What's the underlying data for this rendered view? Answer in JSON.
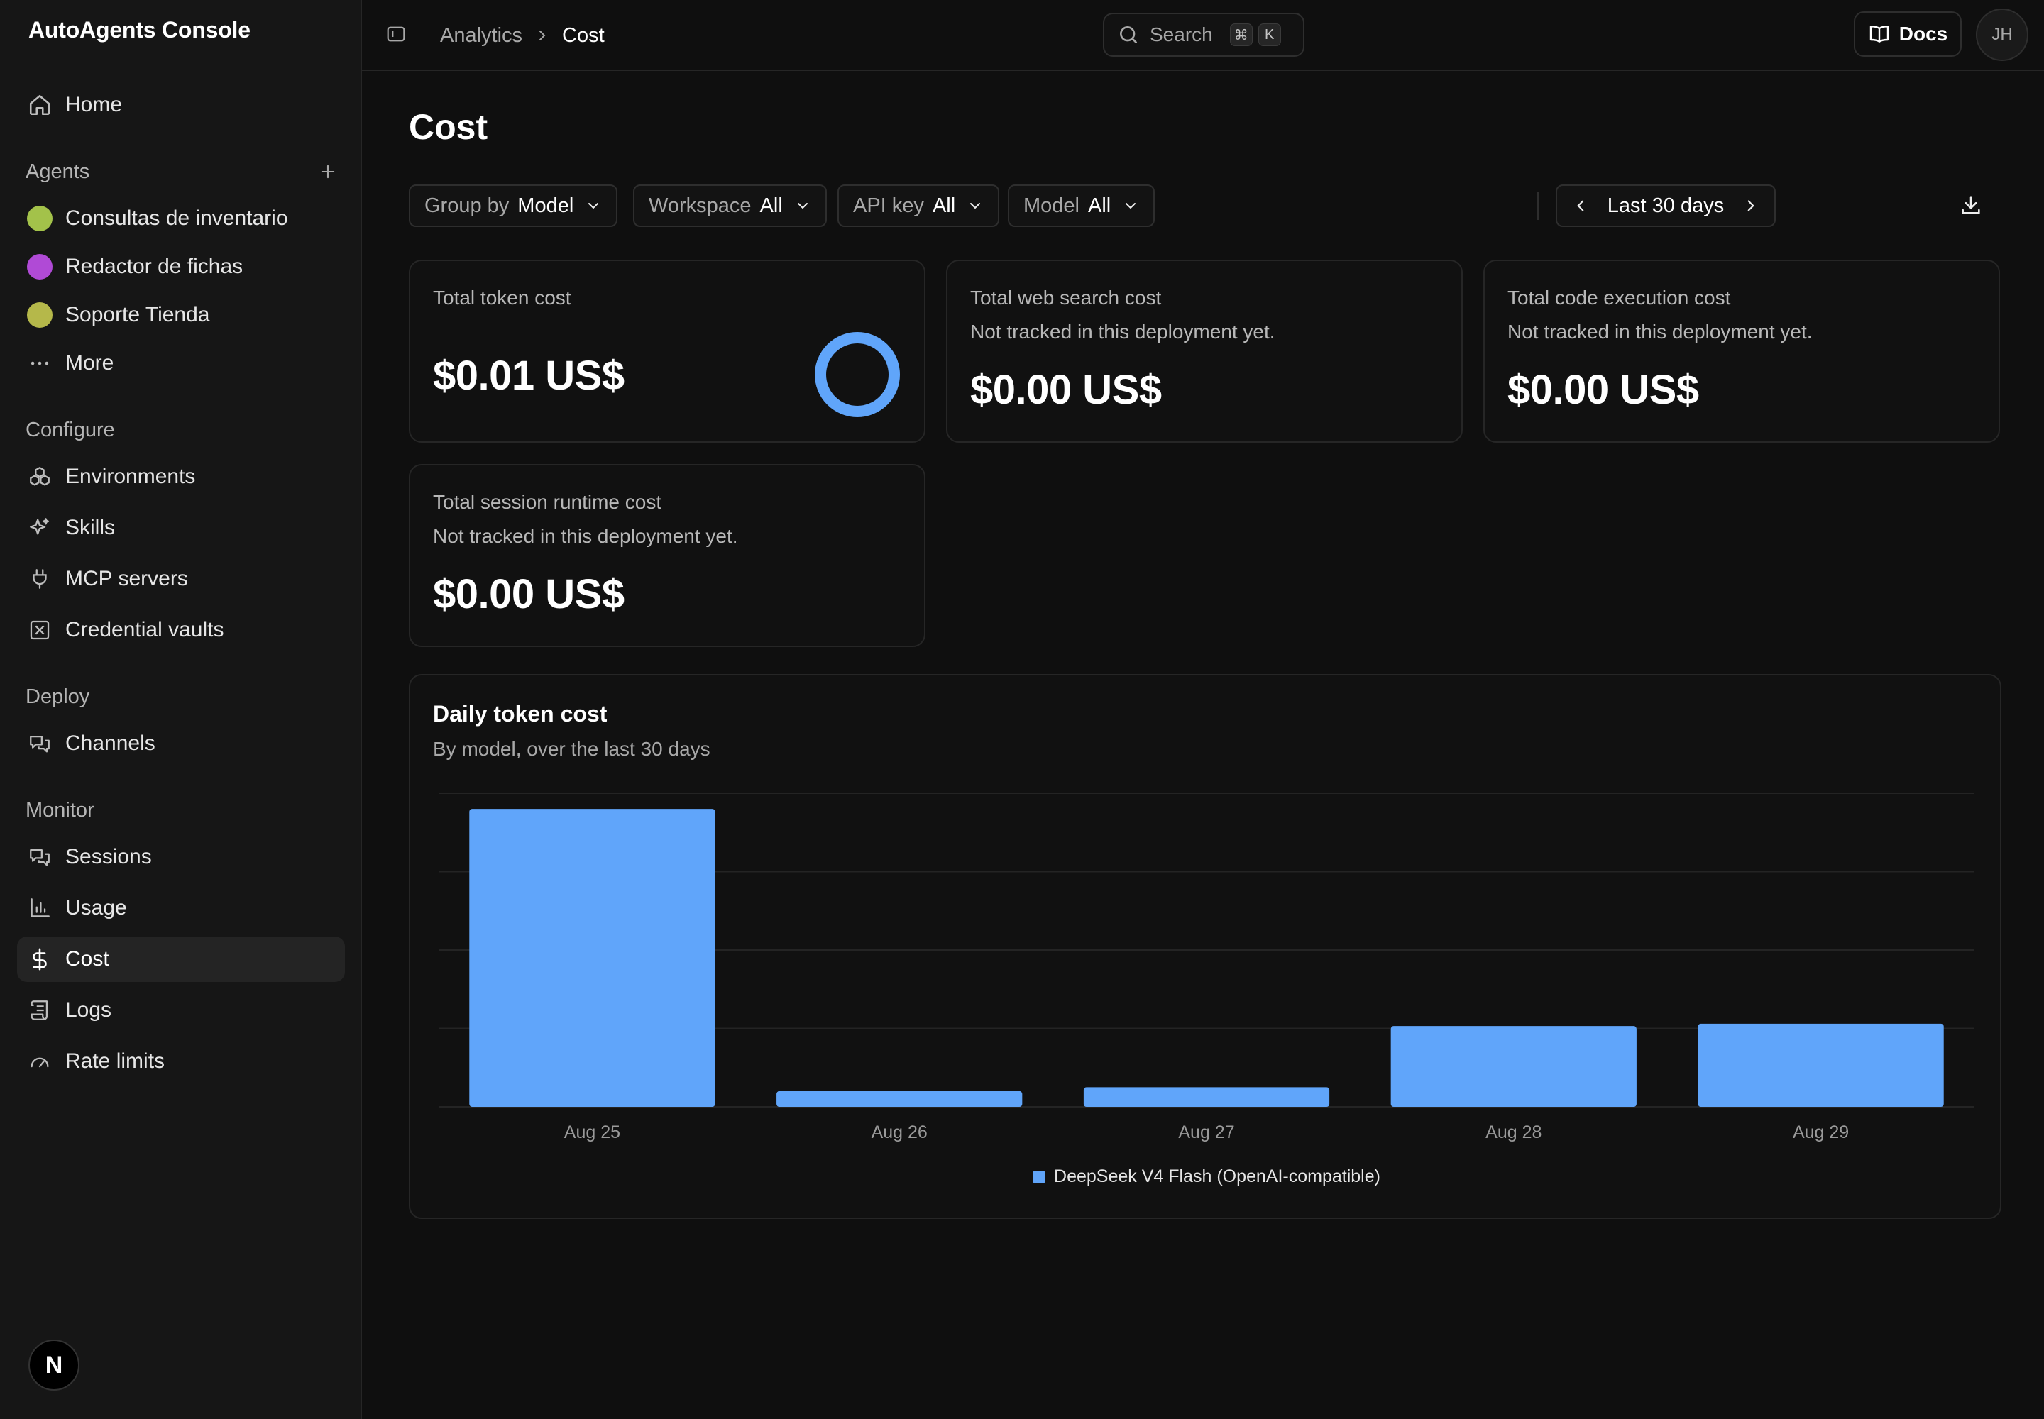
{
  "app": {
    "name": "AutoAgents Console"
  },
  "sidebar": {
    "home": "Home",
    "agents_section": "Agents",
    "agents": [
      {
        "label": "Consultas de inventario",
        "color": "#a3c24a"
      },
      {
        "label": "Redactor de fichas",
        "color": "#b04ad6"
      },
      {
        "label": "Soporte Tienda",
        "color": "#b5b84a"
      }
    ],
    "more": "More",
    "configure_section": "Configure",
    "configure": [
      "Environments",
      "Skills",
      "MCP servers",
      "Credential vaults"
    ],
    "deploy_section": "Deploy",
    "deploy": [
      "Channels"
    ],
    "monitor_section": "Monitor",
    "monitor": [
      "Sessions",
      "Usage",
      "Cost",
      "Logs",
      "Rate limits"
    ],
    "active_item": "Cost",
    "badge": "N"
  },
  "topbar": {
    "breadcrumb": [
      "Analytics",
      "Cost"
    ],
    "search_placeholder": "Search",
    "shortcut": [
      "⌘",
      "K"
    ],
    "docs_label": "Docs",
    "avatar_initials": "JH"
  },
  "page": {
    "title": "Cost"
  },
  "filters": [
    {
      "label": "Group by",
      "value": "Model"
    },
    {
      "label": "Workspace",
      "value": "All"
    },
    {
      "label": "API key",
      "value": "All"
    },
    {
      "label": "Model",
      "value": "All"
    }
  ],
  "date_range": "Last 30 days",
  "cards": [
    {
      "title": "Total token cost",
      "note": "",
      "value": "$0.01 US$"
    },
    {
      "title": "Total web search cost",
      "note": "Not tracked in this deployment yet.",
      "value": "$0.00 US$"
    },
    {
      "title": "Total code execution cost",
      "note": "Not tracked in this deployment yet.",
      "value": "$0.00 US$"
    },
    {
      "title": "Total session runtime cost",
      "note": "Not tracked in this deployment yet.",
      "value": "$0.00 US$"
    }
  ],
  "colors": {
    "accent": "#60a5fa",
    "background": "#0f0f0f",
    "sidebar": "#161616"
  },
  "chart_data": {
    "type": "bar",
    "title": "Daily token cost",
    "subtitle": "By model, over the last 30 days",
    "categories": [
      "Aug 25",
      "Aug 26",
      "Aug 27",
      "Aug 28",
      "Aug 29"
    ],
    "series": [
      {
        "name": "DeepSeek V4 Flash (OpenAI-compatible)",
        "values": [
          0.0038,
          0.0002,
          0.00025,
          0.00103,
          0.00106
        ],
        "color": "#60a5fa"
      }
    ],
    "ylim": [
      0,
      0.004
    ],
    "grid": true,
    "legend": "bottom-center"
  }
}
